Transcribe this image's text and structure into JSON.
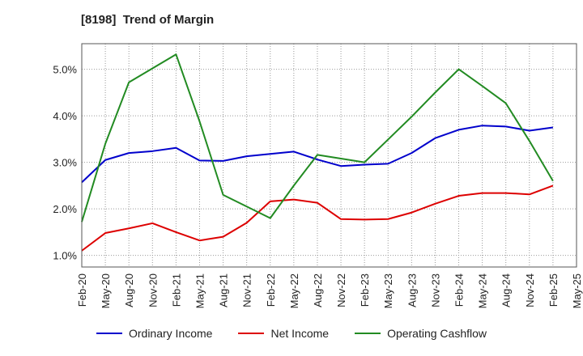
{
  "chart_data": {
    "type": "line",
    "title": "[8198]  Trend of Margin",
    "xlabel": "",
    "ylabel": "",
    "categories": [
      "Feb-20",
      "May-20",
      "Aug-20",
      "Nov-20",
      "Feb-21",
      "May-21",
      "Aug-21",
      "Nov-21",
      "Feb-22",
      "May-22",
      "Aug-22",
      "Nov-22",
      "Feb-23",
      "May-23",
      "Aug-23",
      "Nov-23",
      "Feb-24",
      "May-24",
      "Aug-24",
      "Nov-24",
      "Feb-25",
      "May-25"
    ],
    "ylim": [
      0.75,
      5.55
    ],
    "yticks": [
      1.0,
      2.0,
      3.0,
      4.0,
      5.0
    ],
    "ytick_labels": [
      "1.0%",
      "2.0%",
      "3.0%",
      "4.0%",
      "5.0%"
    ],
    "grid": true,
    "legend_position": "bottom",
    "series": [
      {
        "name": "Ordinary Income",
        "color": "#0000cc",
        "values": [
          2.57,
          3.05,
          3.2,
          3.24,
          3.31,
          3.04,
          3.03,
          3.13,
          3.18,
          3.23,
          3.06,
          2.92,
          2.95,
          2.97,
          3.2,
          3.52,
          3.7,
          3.79,
          3.77,
          3.68,
          3.75,
          null
        ]
      },
      {
        "name": "Net Income",
        "color": "#dd0000",
        "values": [
          1.1,
          1.48,
          1.58,
          1.69,
          1.5,
          1.32,
          1.4,
          1.7,
          2.16,
          2.2,
          2.13,
          1.78,
          1.77,
          1.78,
          1.92,
          2.11,
          2.28,
          2.34,
          2.34,
          2.31,
          2.5,
          null
        ]
      },
      {
        "name": "Operating Cashflow",
        "color": "#228b22",
        "values": [
          1.72,
          3.4,
          4.72,
          5.02,
          5.32,
          3.88,
          2.3,
          2.05,
          1.8,
          2.5,
          3.16,
          3.08,
          3.0,
          3.49,
          3.98,
          4.5,
          5.0,
          4.64,
          4.27,
          3.46,
          2.6,
          null
        ]
      }
    ]
  }
}
